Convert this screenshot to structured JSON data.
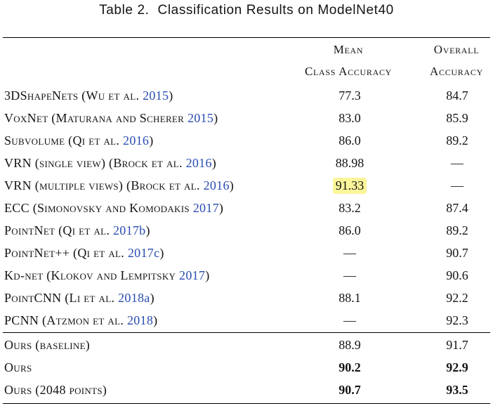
{
  "caption": {
    "label": "Table 2.",
    "title": "Classification Results on ModelNet40"
  },
  "columns": {
    "mean_line1": "Mean",
    "mean_line2": "Class Accuracy",
    "overall_line1": "Overall",
    "overall_line2": "Accuracy"
  },
  "rows": [
    {
      "method": "3DShapeNets (Wu et al. ",
      "year": "2015",
      "tail": ")",
      "mean": "77.3",
      "overall": "84.7"
    },
    {
      "method": "VoxNet (Maturana and Scherer ",
      "year": "2015",
      "tail": ")",
      "mean": "83.0",
      "overall": "85.9"
    },
    {
      "method": "Subvolume (Qi et al. ",
      "year": "2016",
      "tail": ")",
      "mean": "86.0",
      "overall": "89.2"
    },
    {
      "method": "VRN (single view) (Brock et al. ",
      "year": "2016",
      "tail": ")",
      "mean": "88.98",
      "overall": "—"
    },
    {
      "method": "VRN (multiple views) (Brock et al. ",
      "year": "2016",
      "tail": ")",
      "mean": "91.33",
      "overall": "—",
      "highlight": true
    },
    {
      "method": "ECC (Simonovsky and Komodakis ",
      "year": "2017",
      "tail": ")",
      "mean": "83.2",
      "overall": "87.4"
    },
    {
      "method": "PointNet (Qi et al. ",
      "year": "2017b",
      "tail": ")",
      "mean": "86.0",
      "overall": "89.2"
    },
    {
      "method": "PointNet++ (Qi et al. ",
      "year": "2017c",
      "tail": ")",
      "mean": "—",
      "overall": "90.7"
    },
    {
      "method": "Kd-net (Klokov and Lempitsky ",
      "year": "2017",
      "tail": ")",
      "mean": "—",
      "overall": "90.6"
    },
    {
      "method": "PointCNN (Li et al. ",
      "year": "2018a",
      "tail": ")",
      "mean": "88.1",
      "overall": "92.2"
    },
    {
      "method": "PCNN (Atzmon et al. ",
      "year": "2018",
      "tail": ")",
      "mean": "—",
      "overall": "92.3"
    }
  ],
  "ours": [
    {
      "method": "Ours (baseline)",
      "mean": "88.9",
      "overall": "91.7"
    },
    {
      "method": "Ours",
      "mean": "90.2",
      "overall": "92.9"
    },
    {
      "method": "Ours (2048 points)",
      "mean": "90.7",
      "overall": "93.5"
    }
  ]
}
